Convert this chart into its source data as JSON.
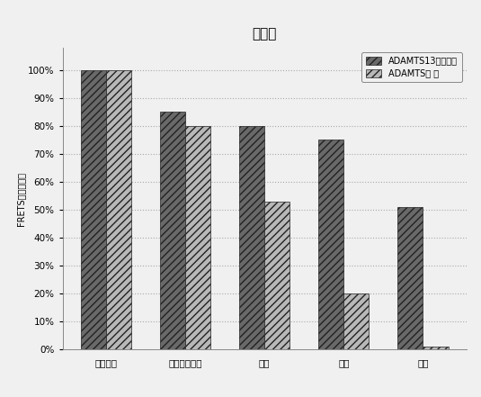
{
  "title": "図３３",
  "categories": [
    "開始物質",
    "０．２８６倍",
    "１倍",
    "２倍",
    "４倍"
  ],
  "series1_label": "ADAMTS13凍結乾燥",
  "series2_label": "ADAMTS液 体",
  "series1_values": [
    100,
    85,
    80,
    75,
    51
  ],
  "series2_values": [
    100,
    80,
    53,
    20,
    1
  ],
  "ylabel": "FRETS活性［％］",
  "ylim": [
    0,
    108
  ],
  "yticks": [
    0,
    10,
    20,
    30,
    40,
    50,
    60,
    70,
    80,
    90,
    100
  ],
  "ytick_labels": [
    "0%",
    "10%",
    "20%",
    "30%",
    "40%",
    "50%",
    "60%",
    "70%",
    "80%",
    "90%",
    "100%"
  ],
  "bar_width": 0.32,
  "color1": "#696969",
  "color2": "#b8b8b8",
  "hatch1": "////",
  "hatch2": "////",
  "background_color": "#f0f0f0",
  "grid_color": "#aaaaaa",
  "title_fontsize": 11,
  "axis_fontsize": 7,
  "tick_fontsize": 7.5,
  "legend_fontsize": 7
}
